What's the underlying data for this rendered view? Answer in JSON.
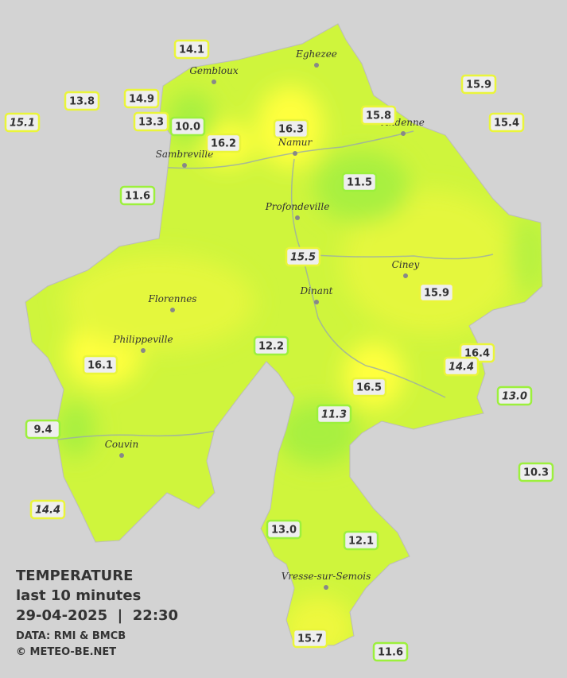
{
  "legend": {
    "title": "TEMPERATURE",
    "period": "last 10 minutes",
    "datetime": "29-04-2025  |  22:30",
    "source": "DATA: RMI & BMCB",
    "copyright": "© METEO-BE.NET"
  },
  "cities": [
    "Eghezee",
    "Gembloux",
    "Andenne",
    "Namur",
    "Sambreville",
    "Profondeville",
    "Ciney",
    "Dinant",
    "Florennes",
    "Philippeville",
    "Couvin",
    "Vresse-sur-Semois"
  ],
  "stations": [
    "14.1",
    "13.8",
    "14.9",
    "15.1",
    "13.3",
    "10.0",
    "16.3",
    "16.2",
    "15.8",
    "15.9",
    "15.4",
    "11.6",
    "11.5",
    "15.5",
    "15.9",
    "12.2",
    "16.1",
    "16.4",
    "14.4",
    "16.5",
    "13.0",
    "11.3",
    "9.4",
    "10.3",
    "14.4",
    "13.0",
    "12.1",
    "15.7",
    "11.6"
  ]
}
